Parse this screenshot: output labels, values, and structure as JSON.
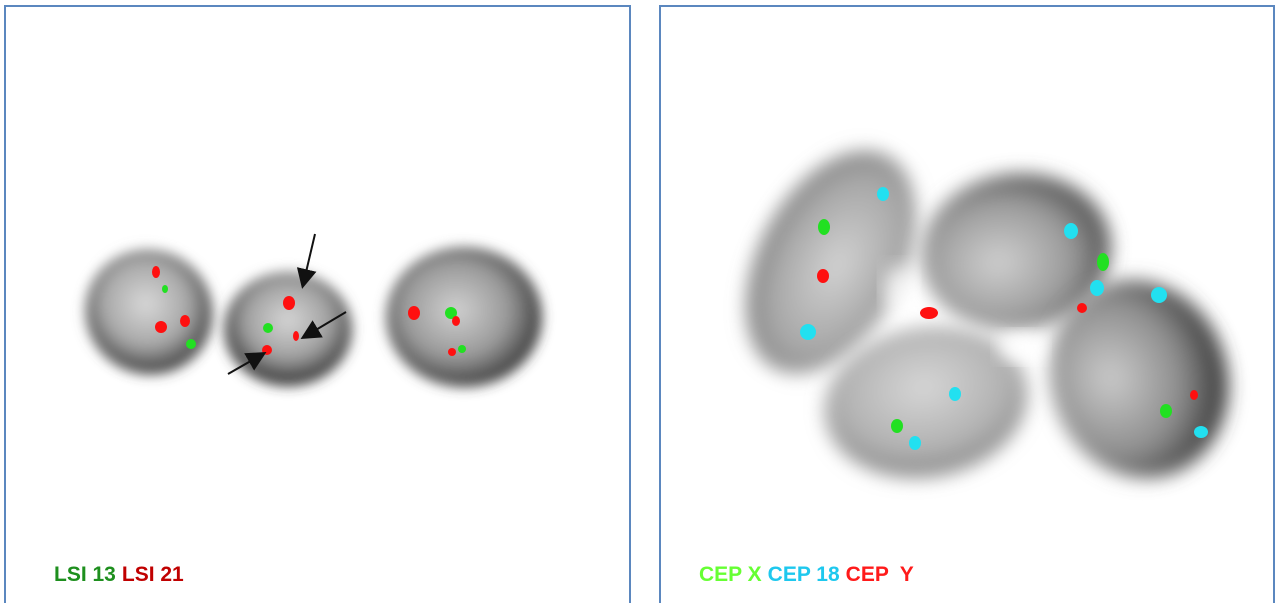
{
  "panels": [
    {
      "legend": [
        {
          "text": "LSI 13",
          "color": "#1e8f1e"
        },
        {
          "text": "LSI 21",
          "color": "#c00000"
        }
      ]
    },
    {
      "legend": [
        {
          "text": "CEP X",
          "color": "#66ff33"
        },
        {
          "text": "CEP 18",
          "color": "#1ec8ee"
        },
        {
          "text": "CEP  Y",
          "color": "#ff1a1a"
        }
      ]
    }
  ],
  "colors": {
    "panel_border": "#5b87bf",
    "signal_red": "#ff1010",
    "signal_green": "#22e022",
    "signal_cyan": "#22e0f0",
    "arrow": "#111111"
  }
}
